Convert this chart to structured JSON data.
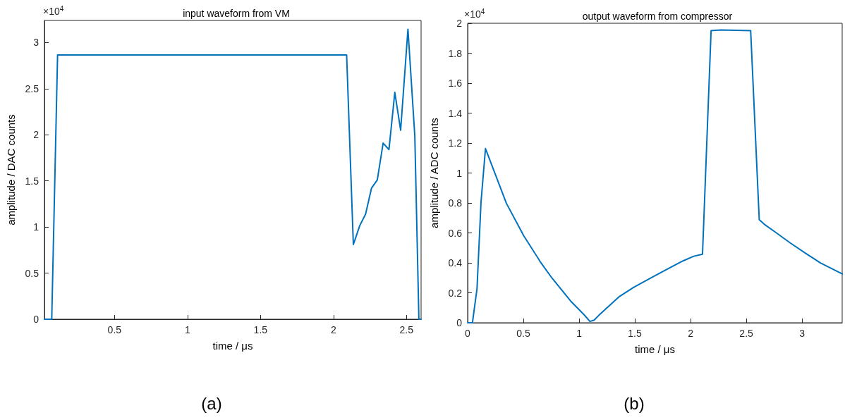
{
  "chart_data": [
    {
      "type": "line",
      "title": "input waveform from VM",
      "xlabel": "time / μs",
      "ylabel": "amplitude / DAC counts",
      "annotations": [
        "×10$^{4}$",
        "(a)"
      ],
      "xlim": [
        0.02,
        2.6
      ],
      "ylim": [
        0,
        3.24
      ],
      "xticks": [
        0.5,
        1,
        1.5,
        2,
        2.5
      ],
      "yticks": [
        0,
        0.5,
        1,
        1.5,
        2,
        2.5,
        3
      ],
      "grid": false,
      "marker": "none",
      "line_style": "solid",
      "series": [
        {
          "color": "#0072bd",
          "x": [
            0.02,
            0.07,
            0.11,
            2.09,
            2.136,
            2.18,
            2.22,
            2.26,
            2.3,
            2.34,
            2.38,
            2.42,
            2.46,
            2.51,
            2.557,
            2.585,
            2.6
          ],
          "values": [
            0,
            0,
            2.865,
            2.865,
            0.81,
            1.015,
            1.14,
            1.42,
            1.51,
            1.91,
            1.84,
            2.46,
            2.05,
            3.145,
            1.99,
            0,
            0
          ]
        }
      ]
    },
    {
      "type": "line",
      "title": "output waveform from compressor",
      "xlabel": "time / μs",
      "ylabel": "amplitude / ADC counts",
      "annotations": [
        "×10$^{4}$",
        "(b)"
      ],
      "xlim": [
        0,
        3.36
      ],
      "ylim": [
        0,
        2
      ],
      "xticks": [
        0,
        0.5,
        1,
        1.5,
        2,
        2.5,
        3
      ],
      "yticks": [
        0,
        0.2,
        0.4,
        0.6,
        0.8,
        1,
        1.2,
        1.4,
        1.6,
        1.8,
        2
      ],
      "grid": false,
      "marker": "none",
      "line_style": "solid",
      "series": [
        {
          "color": "#0072bd",
          "x": [
            0,
            0.043,
            0.084,
            0.12,
            0.16,
            0.348,
            0.504,
            0.66,
            0.756,
            0.924,
            1.044,
            1.097,
            1.135,
            1.176,
            1.356,
            1.488,
            1.644,
            1.8,
            1.932,
            2.028,
            2.107,
            2.184,
            2.27,
            2.539,
            2.616,
            2.664,
            2.748,
            2.892,
            3.036,
            3.168,
            3.36
          ],
          "values": [
            0,
            0,
            0.226,
            0.806,
            1.163,
            0.797,
            0.58,
            0.398,
            0.299,
            0.145,
            0.054,
            0.009,
            0.018,
            0.049,
            0.172,
            0.236,
            0.299,
            0.362,
            0.413,
            0.444,
            0.458,
            1.951,
            1.955,
            1.951,
            0.688,
            0.656,
            0.612,
            0.534,
            0.462,
            0.398,
            0.326
          ]
        }
      ]
    }
  ]
}
